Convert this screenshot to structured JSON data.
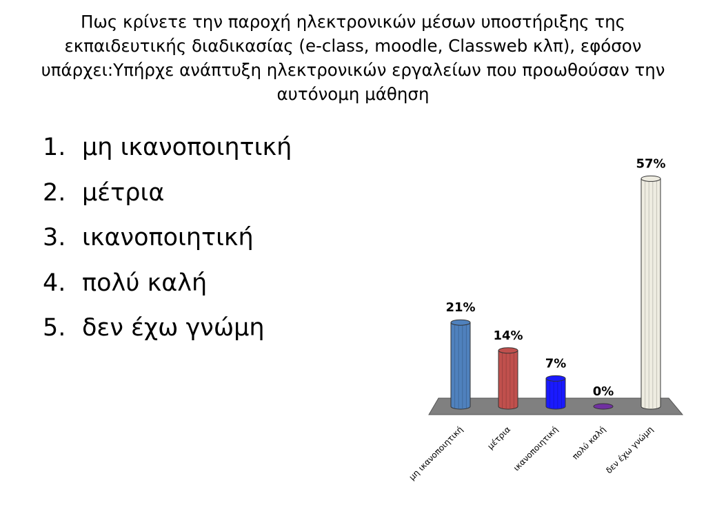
{
  "title": "Πως κρίνετε την παροχή ηλεκτρονικών μέσων υποστήριξης της εκπαιδευτικής διαδικασίας (e-class, moodle, Classweb κλπ), εφόσον υπάρχει:Υπήρχε ανάπτυξη ηλεκτρονικών εργαλείων που προωθούσαν την αυτόνομη μάθηση",
  "list": [
    "μη ικανοποιητική",
    "μέτρια",
    "ικανοποιητική",
    "πολύ καλή",
    "δεν έχω γνώμη"
  ],
  "chart_data": {
    "type": "bar",
    "categories": [
      "μη ικανοποιητική",
      "μέτρια",
      "ικανοποιητική",
      "πολύ καλή",
      "δεν έχω γνώμη"
    ],
    "values": [
      21,
      14,
      7,
      0,
      57
    ],
    "value_labels": [
      "21%",
      "14%",
      "7%",
      "0%",
      "57%"
    ],
    "colors": [
      "#4f81bd",
      "#c0504d",
      "#1a1aff",
      "#7030a0",
      "#eeece1"
    ]
  }
}
